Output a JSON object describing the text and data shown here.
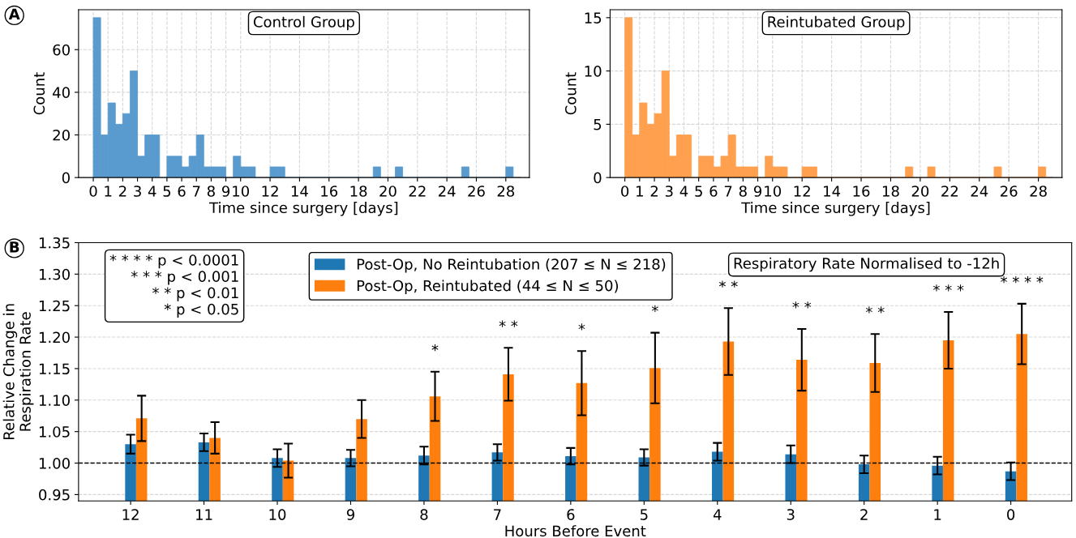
{
  "chart_data": [
    {
      "type": "histogram",
      "title": "Control Group",
      "xlabel": "Time since surgery [days]",
      "ylabel": "Count",
      "annotations": [
        "A"
      ],
      "color": "#5a9bcf",
      "grid": true,
      "bins": [
        0,
        0.5,
        1,
        1.5,
        2,
        2.5,
        3,
        3.5,
        4,
        4.5,
        5,
        5.5,
        6,
        6.5,
        7,
        7.5,
        8,
        8.5,
        9,
        9.5,
        10,
        10.5,
        11,
        11.5,
        12,
        12.5,
        13,
        13.5,
        14,
        14.5,
        15,
        15.5,
        16,
        16.5,
        17,
        17.5,
        18,
        18.5,
        19,
        19.5,
        20,
        20.5,
        21,
        21.5,
        22,
        22.5,
        23,
        23.5,
        24,
        24.5,
        25,
        25.5,
        26,
        26.5,
        27,
        27.5,
        28,
        28.5,
        29
      ],
      "values": [
        75,
        20,
        35,
        25,
        30,
        50,
        10,
        20,
        20,
        0,
        10,
        10,
        5,
        10,
        20,
        5,
        5,
        5,
        0,
        10,
        5,
        5,
        0,
        0,
        5,
        5,
        0,
        0,
        0,
        0,
        0,
        0,
        0,
        0,
        0,
        0,
        0,
        0,
        5,
        0,
        0,
        5,
        0,
        0,
        0,
        0,
        0,
        0,
        0,
        0,
        5,
        0,
        0,
        0,
        0,
        0,
        5,
        0
      ],
      "xlim": [
        -1,
        29.6
      ],
      "xticks": [
        0,
        1,
        2,
        3,
        4,
        5,
        6,
        7,
        8,
        9,
        10,
        12,
        14,
        16,
        18,
        20,
        22,
        24,
        26,
        28
      ],
      "ylim": [
        0,
        78.75
      ],
      "yticks": [
        0,
        20,
        40,
        60
      ]
    },
    {
      "type": "histogram",
      "title": "Reintubated Group",
      "xlabel": "Time since surgery [days]",
      "ylabel": "Count",
      "color": "#ffa04f",
      "grid": true,
      "bins": [
        0,
        0.5,
        1,
        1.5,
        2,
        2.5,
        3,
        3.5,
        4,
        4.5,
        5,
        5.5,
        6,
        6.5,
        7,
        7.5,
        8,
        8.5,
        9,
        9.5,
        10,
        10.5,
        11,
        11.5,
        12,
        12.5,
        13,
        13.5,
        14,
        14.5,
        15,
        15.5,
        16,
        16.5,
        17,
        17.5,
        18,
        18.5,
        19,
        19.5,
        20,
        20.5,
        21,
        21.5,
        22,
        22.5,
        23,
        23.5,
        24,
        24.5,
        25,
        25.5,
        26,
        26.5,
        27,
        27.5,
        28,
        28.5,
        29
      ],
      "values": [
        15,
        4,
        7,
        5,
        6,
        10,
        2,
        4,
        4,
        0,
        2,
        2,
        1,
        2,
        4,
        1,
        1,
        1,
        0,
        2,
        1,
        1,
        0,
        0,
        1,
        1,
        0,
        0,
        0,
        0,
        0,
        0,
        0,
        0,
        0,
        0,
        0,
        0,
        1,
        0,
        0,
        1,
        0,
        0,
        0,
        0,
        0,
        0,
        0,
        0,
        1,
        0,
        0,
        0,
        0,
        0,
        1,
        0
      ],
      "xlim": [
        -1,
        29.6
      ],
      "xticks": [
        0,
        1,
        2,
        3,
        4,
        5,
        6,
        7,
        8,
        9,
        10,
        12,
        14,
        16,
        18,
        20,
        22,
        24,
        26,
        28
      ],
      "ylim": [
        0,
        15.75
      ],
      "yticks": [
        0,
        5,
        10,
        15
      ]
    },
    {
      "type": "bar",
      "title": "Respiratory Rate Normalised to -12h",
      "xlabel": "Hours Before Event",
      "ylabel": "Relative Change in\nRespiration Rate",
      "categories": [
        "12",
        "11",
        "10",
        "9",
        "8",
        "7",
        "6",
        "5",
        "4",
        "3",
        "2",
        "1",
        "0"
      ],
      "series": [
        {
          "name": "Post-Op, No Reintubation (207 ≤ N ≤ 218)",
          "color": "#1f77b4",
          "values": [
            1.03,
            1.033,
            1.008,
            1.008,
            1.012,
            1.017,
            1.011,
            1.009,
            1.018,
            1.014,
            0.998,
            0.996,
            0.987
          ],
          "errors": [
            0.015,
            0.014,
            0.014,
            0.013,
            0.014,
            0.013,
            0.013,
            0.013,
            0.014,
            0.014,
            0.014,
            0.014,
            0.014
          ]
        },
        {
          "name": "Post-Op, Reintubated (44 ≤ N ≤ 50)",
          "color": "#ff7f0e",
          "values": [
            1.071,
            1.04,
            1.004,
            1.07,
            1.106,
            1.141,
            1.127,
            1.151,
            1.193,
            1.164,
            1.159,
            1.195,
            1.205
          ],
          "errors": [
            0.036,
            0.025,
            0.027,
            0.03,
            0.039,
            0.042,
            0.051,
            0.056,
            0.053,
            0.049,
            0.046,
            0.045,
            0.048
          ]
        }
      ],
      "ylim": [
        0.94,
        1.35
      ],
      "yticks": [
        {
          "value": 0.95,
          "label": "0.95"
        },
        {
          "value": 1.0,
          "label": "1.00"
        },
        {
          "value": 1.05,
          "label": "1.05"
        },
        {
          "value": 1.1,
          "label": "1.10"
        },
        {
          "value": 1.15,
          "label": "1.15"
        },
        {
          "value": 1.2,
          "label": "1.20"
        },
        {
          "value": 1.25,
          "label": "1.25"
        },
        {
          "value": 1.3,
          "label": "1.30"
        },
        {
          "value": 1.35,
          "label": "1.35"
        }
      ],
      "grid": "y",
      "legend": "top",
      "ref_lines": [
        {
          "axis": "y",
          "value": 1.0,
          "color": "#000000",
          "line_style": "dashed"
        }
      ],
      "annotations": [
        "B",
        "* * * * p < 0.0001\n* * * p < 0.001\n* * p < 0.01\n* p < 0.05",
        "*",
        "* *",
        "*",
        "*",
        "* *",
        "* *",
        "* *",
        "* * *",
        "* * * *"
      ]
    }
  ]
}
